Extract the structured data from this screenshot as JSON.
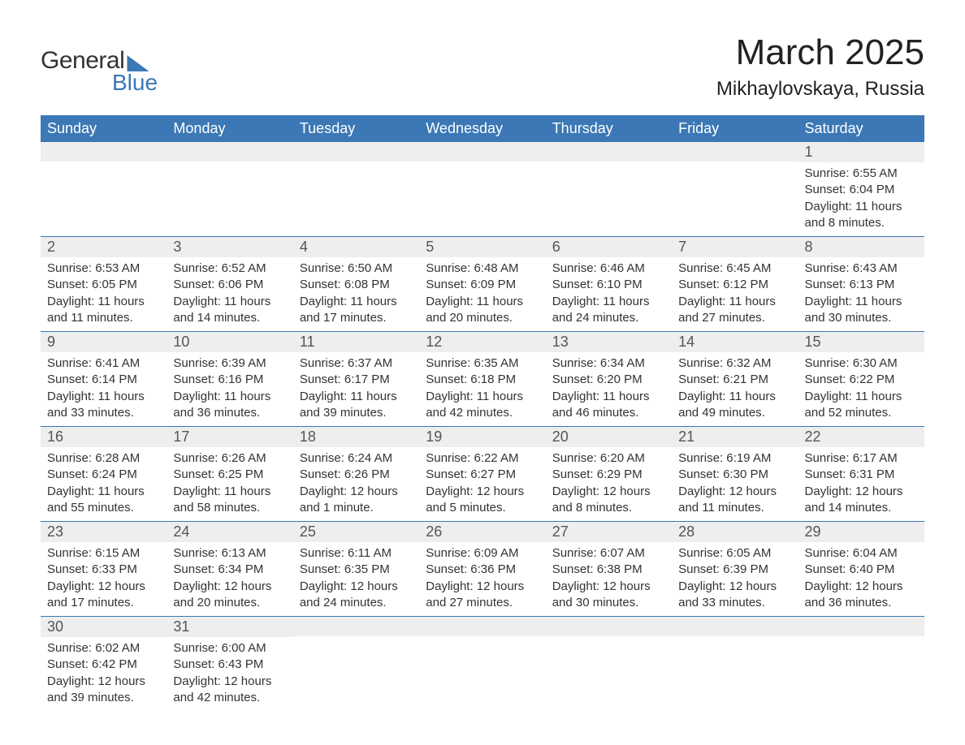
{
  "logo": {
    "text1": "General",
    "text2": "Blue"
  },
  "title": {
    "month": "March 2025",
    "location": "Mikhaylovskaya, Russia"
  },
  "styling": {
    "header_bg": "#3b78b5",
    "header_text_color": "#ffffff",
    "row_border_color": "#3b78b5",
    "daynum_bg": "#eeeeee",
    "daynum_color": "#555555",
    "body_text_color": "#333333",
    "page_bg": "#ffffff",
    "title_fontsize": 44,
    "location_fontsize": 24,
    "header_fontsize": 18,
    "daynum_fontsize": 18,
    "cell_fontsize": 15
  },
  "labels": {
    "sunrise": "Sunrise:",
    "sunset": "Sunset:",
    "daylight": "Daylight:"
  },
  "weekdays": [
    "Sunday",
    "Monday",
    "Tuesday",
    "Wednesday",
    "Thursday",
    "Friday",
    "Saturday"
  ],
  "weeks": [
    [
      null,
      null,
      null,
      null,
      null,
      null,
      {
        "d": "1",
        "sunrise": "6:55 AM",
        "sunset": "6:04 PM",
        "daylight": "11 hours and 8 minutes."
      }
    ],
    [
      {
        "d": "2",
        "sunrise": "6:53 AM",
        "sunset": "6:05 PM",
        "daylight": "11 hours and 11 minutes."
      },
      {
        "d": "3",
        "sunrise": "6:52 AM",
        "sunset": "6:06 PM",
        "daylight": "11 hours and 14 minutes."
      },
      {
        "d": "4",
        "sunrise": "6:50 AM",
        "sunset": "6:08 PM",
        "daylight": "11 hours and 17 minutes."
      },
      {
        "d": "5",
        "sunrise": "6:48 AM",
        "sunset": "6:09 PM",
        "daylight": "11 hours and 20 minutes."
      },
      {
        "d": "6",
        "sunrise": "6:46 AM",
        "sunset": "6:10 PM",
        "daylight": "11 hours and 24 minutes."
      },
      {
        "d": "7",
        "sunrise": "6:45 AM",
        "sunset": "6:12 PM",
        "daylight": "11 hours and 27 minutes."
      },
      {
        "d": "8",
        "sunrise": "6:43 AM",
        "sunset": "6:13 PM",
        "daylight": "11 hours and 30 minutes."
      }
    ],
    [
      {
        "d": "9",
        "sunrise": "6:41 AM",
        "sunset": "6:14 PM",
        "daylight": "11 hours and 33 minutes."
      },
      {
        "d": "10",
        "sunrise": "6:39 AM",
        "sunset": "6:16 PM",
        "daylight": "11 hours and 36 minutes."
      },
      {
        "d": "11",
        "sunrise": "6:37 AM",
        "sunset": "6:17 PM",
        "daylight": "11 hours and 39 minutes."
      },
      {
        "d": "12",
        "sunrise": "6:35 AM",
        "sunset": "6:18 PM",
        "daylight": "11 hours and 42 minutes."
      },
      {
        "d": "13",
        "sunrise": "6:34 AM",
        "sunset": "6:20 PM",
        "daylight": "11 hours and 46 minutes."
      },
      {
        "d": "14",
        "sunrise": "6:32 AM",
        "sunset": "6:21 PM",
        "daylight": "11 hours and 49 minutes."
      },
      {
        "d": "15",
        "sunrise": "6:30 AM",
        "sunset": "6:22 PM",
        "daylight": "11 hours and 52 minutes."
      }
    ],
    [
      {
        "d": "16",
        "sunrise": "6:28 AM",
        "sunset": "6:24 PM",
        "daylight": "11 hours and 55 minutes."
      },
      {
        "d": "17",
        "sunrise": "6:26 AM",
        "sunset": "6:25 PM",
        "daylight": "11 hours and 58 minutes."
      },
      {
        "d": "18",
        "sunrise": "6:24 AM",
        "sunset": "6:26 PM",
        "daylight": "12 hours and 1 minute."
      },
      {
        "d": "19",
        "sunrise": "6:22 AM",
        "sunset": "6:27 PM",
        "daylight": "12 hours and 5 minutes."
      },
      {
        "d": "20",
        "sunrise": "6:20 AM",
        "sunset": "6:29 PM",
        "daylight": "12 hours and 8 minutes."
      },
      {
        "d": "21",
        "sunrise": "6:19 AM",
        "sunset": "6:30 PM",
        "daylight": "12 hours and 11 minutes."
      },
      {
        "d": "22",
        "sunrise": "6:17 AM",
        "sunset": "6:31 PM",
        "daylight": "12 hours and 14 minutes."
      }
    ],
    [
      {
        "d": "23",
        "sunrise": "6:15 AM",
        "sunset": "6:33 PM",
        "daylight": "12 hours and 17 minutes."
      },
      {
        "d": "24",
        "sunrise": "6:13 AM",
        "sunset": "6:34 PM",
        "daylight": "12 hours and 20 minutes."
      },
      {
        "d": "25",
        "sunrise": "6:11 AM",
        "sunset": "6:35 PM",
        "daylight": "12 hours and 24 minutes."
      },
      {
        "d": "26",
        "sunrise": "6:09 AM",
        "sunset": "6:36 PM",
        "daylight": "12 hours and 27 minutes."
      },
      {
        "d": "27",
        "sunrise": "6:07 AM",
        "sunset": "6:38 PM",
        "daylight": "12 hours and 30 minutes."
      },
      {
        "d": "28",
        "sunrise": "6:05 AM",
        "sunset": "6:39 PM",
        "daylight": "12 hours and 33 minutes."
      },
      {
        "d": "29",
        "sunrise": "6:04 AM",
        "sunset": "6:40 PM",
        "daylight": "12 hours and 36 minutes."
      }
    ],
    [
      {
        "d": "30",
        "sunrise": "6:02 AM",
        "sunset": "6:42 PM",
        "daylight": "12 hours and 39 minutes."
      },
      {
        "d": "31",
        "sunrise": "6:00 AM",
        "sunset": "6:43 PM",
        "daylight": "12 hours and 42 minutes."
      },
      null,
      null,
      null,
      null,
      null
    ]
  ]
}
